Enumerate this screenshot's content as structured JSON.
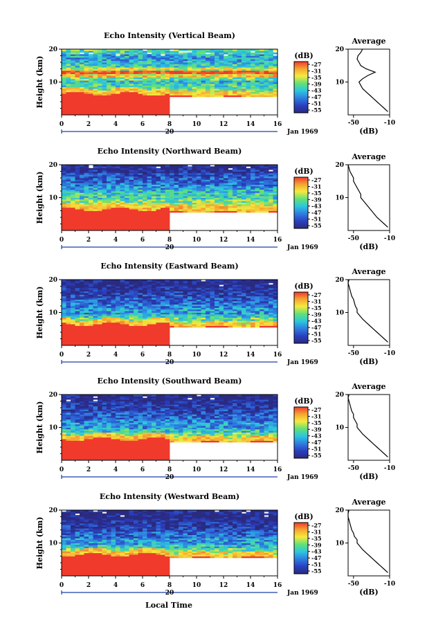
{
  "colorbar": {
    "unit": "(dB)",
    "labels": [
      "-27",
      "-31",
      "-35",
      "-39",
      "-43",
      "-47",
      "-51",
      "-55"
    ],
    "stops": [
      "#ef3a2c",
      "#f5a532",
      "#f6ea3c",
      "#5fe07a",
      "#2cc6df",
      "#2f7fe0",
      "#2a3fbf",
      "#2a2a7f"
    ]
  },
  "time_axis": {
    "ticks": [
      "0",
      "2",
      "4",
      "6",
      "8",
      "10",
      "12",
      "14",
      "16"
    ],
    "date_marker": "20",
    "date_label": "Jan 1969",
    "xlabel": "Local Time"
  },
  "height_axis": {
    "label": "Height (km)",
    "ticks": [
      "10",
      "20"
    ]
  },
  "profile_axis": {
    "title": "Average",
    "xlabel": "(dB)",
    "xticks": [
      "-50",
      "-10"
    ]
  },
  "chart_data": [
    {
      "type": "heatmap",
      "title": "Echo Intensity (Vertical Beam)",
      "x_range": [
        0,
        16
      ],
      "y_range": [
        0,
        20
      ],
      "color_range": [
        -56,
        -27
      ],
      "profile": {
        "type": "line",
        "height_km": [
          1,
          2,
          3,
          4,
          5,
          6,
          7,
          8,
          9,
          10,
          11,
          12,
          13,
          14,
          15,
          16,
          17,
          18,
          19,
          20
        ],
        "avg_db": [
          -12,
          -16,
          -20,
          -24,
          -28,
          -32,
          -36,
          -40,
          -42,
          -44,
          -40,
          -34,
          -26,
          -36,
          -42,
          -44,
          -46,
          -45,
          -42,
          -40
        ]
      }
    },
    {
      "type": "heatmap",
      "title": "Echo Intensity (Northward Beam)",
      "x_range": [
        0,
        16
      ],
      "y_range": [
        0,
        20
      ],
      "color_range": [
        -56,
        -27
      ],
      "profile": {
        "type": "line",
        "height_km": [
          1,
          2,
          3,
          4,
          5,
          6,
          7,
          8,
          9,
          10,
          11,
          12,
          13,
          14,
          15,
          16,
          17,
          18,
          19,
          20
        ],
        "avg_db": [
          -12,
          -16,
          -20,
          -24,
          -27,
          -30,
          -33,
          -36,
          -39,
          -42,
          -42,
          -44,
          -46,
          -48,
          -50,
          -50,
          -52,
          -54,
          -55,
          -56
        ]
      }
    },
    {
      "type": "heatmap",
      "title": "Echo Intensity (Eastward Beam)",
      "x_range": [
        0,
        16
      ],
      "y_range": [
        0,
        20
      ],
      "color_range": [
        -56,
        -27
      ],
      "profile": {
        "type": "line",
        "height_km": [
          1,
          2,
          3,
          4,
          5,
          6,
          7,
          8,
          9,
          10,
          11,
          12,
          13,
          14,
          15,
          16,
          17,
          18,
          19,
          20
        ],
        "avg_db": [
          -12,
          -16,
          -20,
          -24,
          -28,
          -32,
          -36,
          -40,
          -43,
          -46,
          -46,
          -48,
          -49,
          -50,
          -52,
          -53,
          -54,
          -55,
          -56,
          -55
        ]
      }
    },
    {
      "type": "heatmap",
      "title": "Echo Intensity (Southward Beam)",
      "x_range": [
        0,
        16
      ],
      "y_range": [
        0,
        20
      ],
      "color_range": [
        -56,
        -27
      ],
      "profile": {
        "type": "line",
        "height_km": [
          1,
          2,
          3,
          4,
          5,
          6,
          7,
          8,
          9,
          10,
          11,
          12,
          13,
          14,
          15,
          16,
          17,
          18,
          19,
          20
        ],
        "avg_db": [
          -12,
          -16,
          -20,
          -24,
          -28,
          -32,
          -36,
          -40,
          -43,
          -46,
          -46,
          -48,
          -50,
          -50,
          -52,
          -53,
          -54,
          -55,
          -56,
          -55
        ]
      }
    },
    {
      "type": "heatmap",
      "title": "Echo Intensity (Westward Beam)",
      "x_range": [
        0,
        16
      ],
      "y_range": [
        0,
        20
      ],
      "color_range": [
        -56,
        -27
      ],
      "profile": {
        "type": "line",
        "height_km": [
          1,
          2,
          3,
          4,
          5,
          6,
          7,
          8,
          9,
          10,
          11,
          12,
          13,
          14,
          15,
          16,
          17,
          18,
          19,
          20
        ],
        "avg_db": [
          -12,
          -16,
          -20,
          -24,
          -28,
          -32,
          -36,
          -40,
          -43,
          -46,
          -46,
          -49,
          -50,
          -52,
          -53,
          -54,
          -55,
          -56,
          -56,
          -55
        ]
      }
    }
  ]
}
